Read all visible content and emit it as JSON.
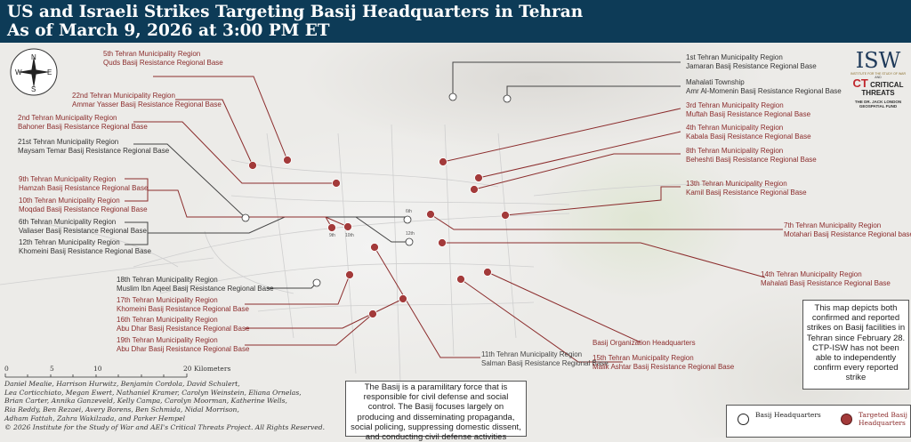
{
  "title": "US and Israeli Strikes Targeting Basij Headquarters in Tehran",
  "subtitle": "As of March 9, 2026 at 3:00 PM ET",
  "compass": {
    "n": "N",
    "s": "S",
    "e": "E",
    "w": "W"
  },
  "colors": {
    "header": "#0d3b57",
    "targeted": "#8b2c2c",
    "hq": "#333333"
  },
  "labels": [
    {
      "region": "5th Tehran Municipality Region",
      "base": "Quds Basij Resistance Regional Base",
      "status": "targeted"
    },
    {
      "region": "22nd Tehran Municipality Region",
      "base": "Ammar Yasser Basij Resistance Regional Base",
      "status": "targeted"
    },
    {
      "region": "2nd Tehran Municipality Region",
      "base": "Bahoner Basij Resistance Regional Base",
      "status": "targeted"
    },
    {
      "region": "21st Tehran Municipality Region",
      "base": "Maysam Temar  Basij Resistance Regional Base",
      "status": "hq"
    },
    {
      "region": "9th Tehran Municipality Region",
      "base": "Hamzah Basij Resistance Regional Base",
      "status": "targeted"
    },
    {
      "region": "10th Tehran Municipality Region",
      "base": "Moqdad Basij Resistance Regional Base",
      "status": "targeted"
    },
    {
      "region": "6th Tehran Municipality Region",
      "base": "Valiaser Basij Resistance Regional Base",
      "status": "hq"
    },
    {
      "region": "12th Tehran Municipality Region",
      "base": "Khomeini Basij Resistance Regional Base",
      "status": "hq"
    },
    {
      "region": "18th Tehran Municipality Region",
      "base": "Muslim Ibn Aqeel Basij Resistance Regional Base",
      "status": "hq"
    },
    {
      "region": "17th Tehran Municipality Region",
      "base": "Khomeini Basij Resistance Regional Base",
      "status": "targeted"
    },
    {
      "region": "16th Tehran Municipality Region",
      "base": "Abu Dhar Basij Resistance Regional Base",
      "status": "targeted"
    },
    {
      "region": "19th Tehran Municipality Region",
      "base": "Abu Dhar Basij Resistance Regional Base",
      "status": "targeted"
    },
    {
      "region": "1st Tehran Municipality Region",
      "base": "Jamaran Basij Resistance Regional Base",
      "status": "hq"
    },
    {
      "region": "Mahalati Township",
      "base": "Amr Al-Momenin Basij Resistance Regional Base",
      "status": "hq"
    },
    {
      "region": "3rd Tehran Municipality Region",
      "base": "Muftah Basij Resistance Regional Base",
      "status": "targeted"
    },
    {
      "region": "4th Tehran Municipality Region",
      "base": "Kabala Basij Resistance Regional Base",
      "status": "targeted"
    },
    {
      "region": "8th Tehran Municipality Region",
      "base": "Beheshti Basij Resistance Regional Base",
      "status": "targeted"
    },
    {
      "region": "13th Tehran Municipality Region",
      "base": "Kamil Basij Resistance Regional Base",
      "status": "targeted"
    },
    {
      "region": "7th Tehran Municipality Region",
      "base": "Motahari Basij Resistance Regional base",
      "status": "targeted"
    },
    {
      "region": "14th Tehran Municipality Region",
      "base": "Mahalati Basij Resistance Regional Base",
      "status": "targeted"
    },
    {
      "region": "11th Tehran Municipality Region",
      "base": "Salman Basij Resistance Regional Base",
      "status": "targeted"
    },
    {
      "region": "Basij Organization Headquarters",
      "base": "",
      "status": "targeted"
    },
    {
      "region": "15th Tehran Municipality Region",
      "base": "Malik Ashtar Basij Resistance Regional Base",
      "status": "targeted"
    }
  ],
  "marker_tags": {
    "m9": "9th",
    "m10": "10th",
    "m6": "6th",
    "m12": "12th"
  },
  "scale": {
    "ticks": [
      "0",
      "5",
      "10",
      "20"
    ],
    "unit": "Kilometers"
  },
  "credits": [
    "Daniel Mealie, Harrison Hurwitz, Benjamin Cordola, David Schulert,",
    "Lea Corticchiato, Megan Ewert, Nathaniel Kramer, Carolyn Weinstein, Eliana Ornelas,",
    "Brian Carter, Annika Ganzeveld, Kelly Campa, Carolyn Moorman, Katherine Wells,",
    "Ria Reddy, Ben Rezaei, Avery Borens,  Ben Schmida, Nidal Morrison,",
    "Adham Fattah, Zahra Wakilzada, and Parker Hempel",
    "© 2026 Institute for the Study of War and AEI's Critical Threats Project. All Rights Reserved."
  ],
  "basij_note": "The Basij is a paramilitary force that is responsible for civil defense and social control. The Basij focuses largely on producing and disseminating propaganda, social policing, suppressing domestic dissent, and conducting civil defense activities",
  "disclaimer": "This map depicts both confirmed and reported strikes on Basij facilities in Tehran since February 28. CTP-ISW has not been able to independently confirm every reported strike",
  "legend": {
    "hq": "Basij Headquarters",
    "targeted": "Targeted Basij Headquarters"
  },
  "logos": {
    "isw": "ISW",
    "isw_sub": "INSTITUTE FOR THE STUDY OF WAR",
    "and": "AND",
    "ct": "CRITICAL THREATS",
    "fund": "THE DR. JACK LONDON GEOSPATIAL FUND"
  }
}
